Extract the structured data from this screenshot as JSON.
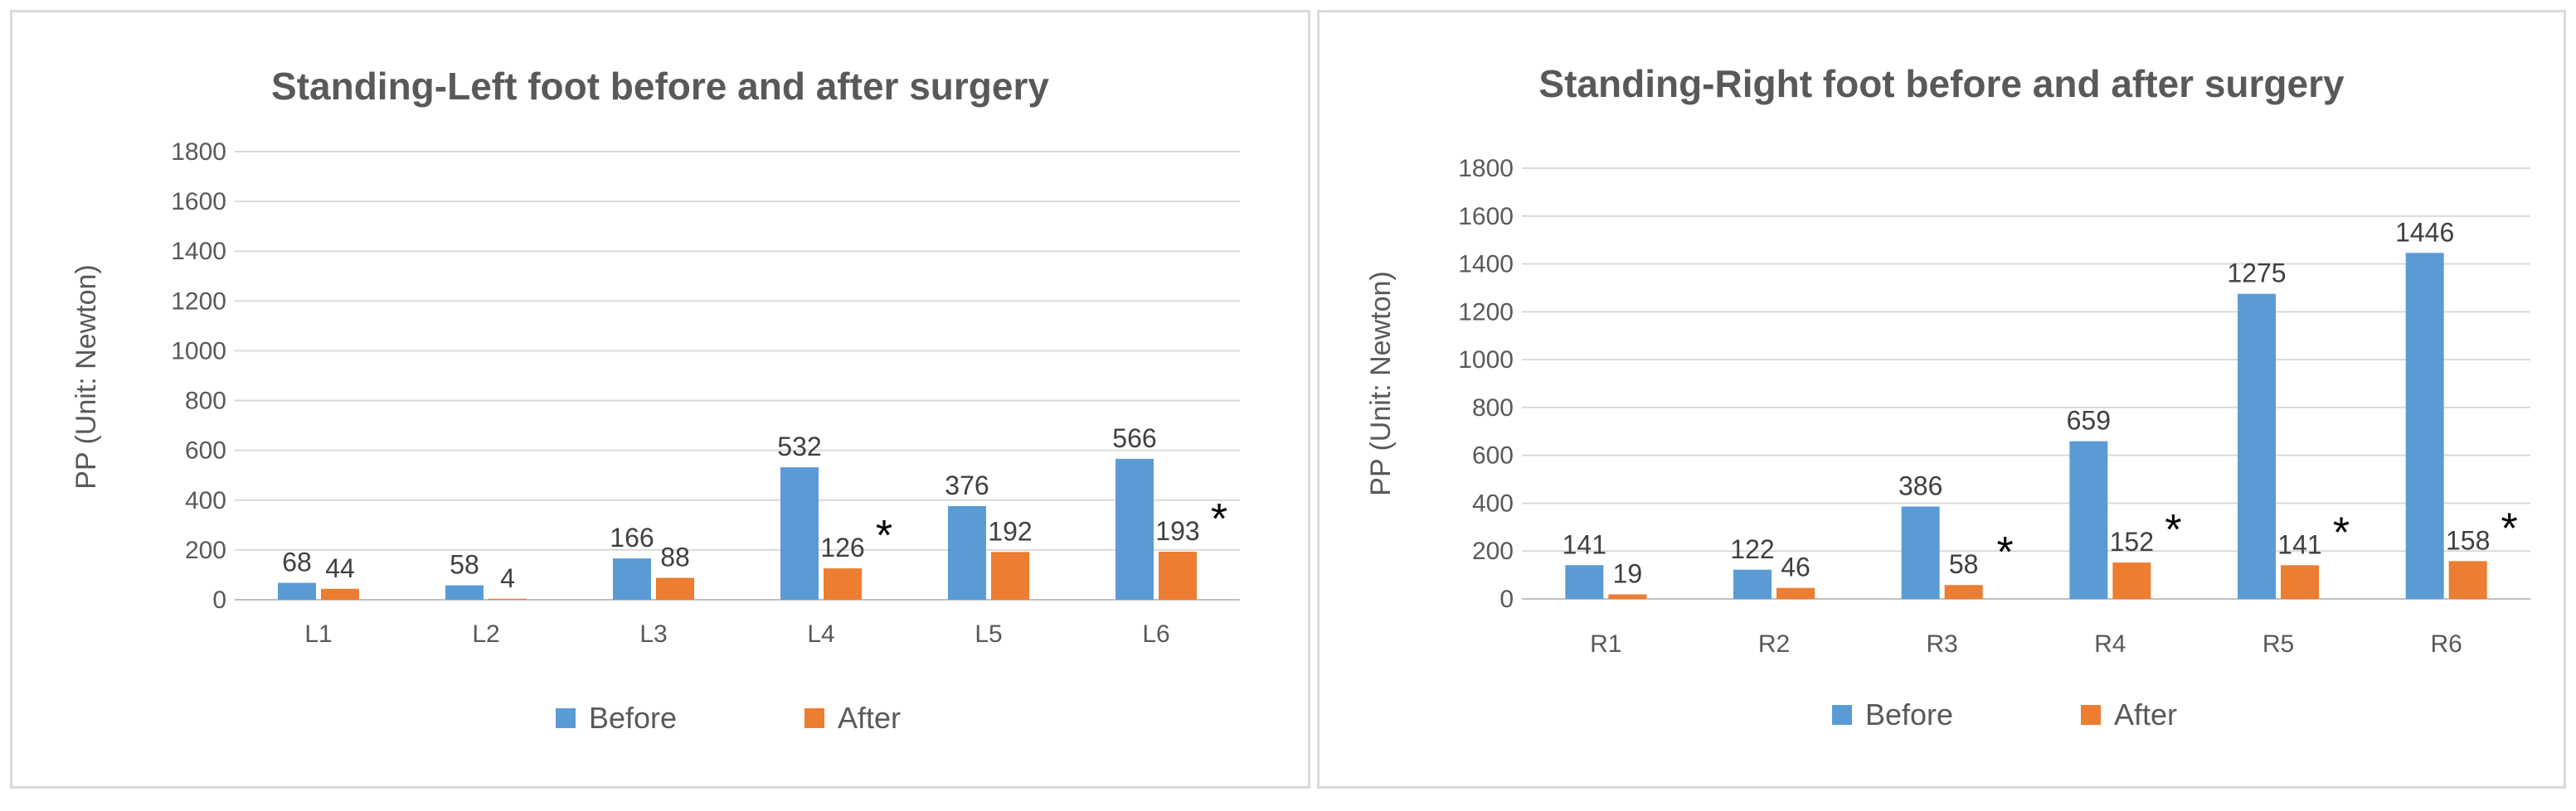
{
  "colors": {
    "before": "#5b9bd5",
    "after": "#ed7d31"
  },
  "chart_data": [
    {
      "type": "bar",
      "title": "Standing-Left foot  before and after surgery",
      "xlabel": "",
      "ylabel": "PP  (Unit: Newton)",
      "ylim": [
        0,
        1800
      ],
      "yticks": [
        0,
        200,
        400,
        600,
        800,
        1000,
        1200,
        1400,
        1600,
        1800
      ],
      "grid": true,
      "legend": "bottom",
      "categories": [
        "L1",
        "L2",
        "L3",
        "L4",
        "L5",
        "L6"
      ],
      "series": [
        {
          "name": "Before",
          "values": [
            68,
            58,
            166,
            532,
            376,
            566
          ]
        },
        {
          "name": "After",
          "values": [
            44,
            4,
            88,
            126,
            192,
            193
          ]
        }
      ],
      "annotations": [
        {
          "category": "L4",
          "text": "*"
        },
        {
          "category": "L6",
          "text": "*"
        }
      ]
    },
    {
      "type": "bar",
      "title": "Standing-Right foot  before and after surgery",
      "xlabel": "",
      "ylabel": "PP  (Unit: Newton)",
      "ylim": [
        0,
        1800
      ],
      "yticks": [
        0,
        200,
        400,
        600,
        800,
        1000,
        1200,
        1400,
        1600,
        1800
      ],
      "grid": true,
      "legend": "bottom",
      "categories": [
        "R1",
        "R2",
        "R3",
        "R4",
        "R5",
        "R6"
      ],
      "series": [
        {
          "name": "Before",
          "values": [
            141,
            122,
            386,
            659,
            1275,
            1446
          ]
        },
        {
          "name": "After",
          "values": [
            19,
            46,
            58,
            152,
            141,
            158
          ]
        }
      ],
      "annotations": [
        {
          "category": "R3",
          "text": "*"
        },
        {
          "category": "R4",
          "text": "*"
        },
        {
          "category": "R5",
          "text": "*"
        },
        {
          "category": "R6",
          "text": "*"
        }
      ]
    }
  ]
}
